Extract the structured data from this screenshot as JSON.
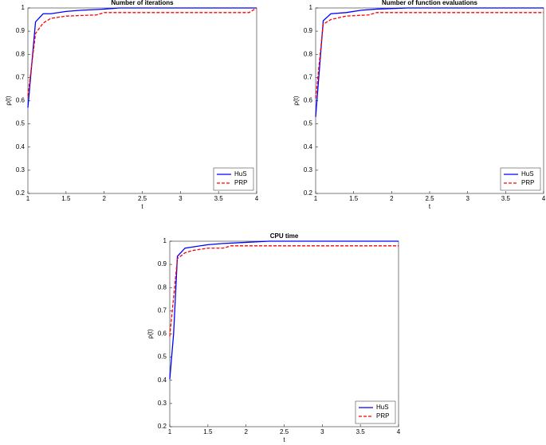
{
  "chart_data": [
    {
      "type": "line",
      "title": "Number of iterations",
      "xlabel": "t",
      "ylabel": "ρ(t)",
      "xlim": [
        1,
        4
      ],
      "ylim": [
        0.2,
        1
      ],
      "xticks": [
        1,
        1.5,
        2,
        2.5,
        3,
        3.5,
        4
      ],
      "yticks": [
        0.2,
        0.3,
        0.4,
        0.5,
        0.6,
        0.7,
        0.8,
        0.9,
        1
      ],
      "legend": "lower right",
      "series": [
        {
          "name": "HuS",
          "color": "#0000ff",
          "linestyle": "solid",
          "x": [
            1,
            1.1,
            1.2,
            1.3,
            1.5,
            1.7,
            2,
            2.2,
            4
          ],
          "values": [
            0.57,
            0.94,
            0.975,
            0.975,
            0.985,
            0.99,
            0.995,
            1,
            1
          ]
        },
        {
          "name": "PRP",
          "color": "#ff0000",
          "linestyle": "dashed",
          "x": [
            1,
            1.1,
            1.2,
            1.3,
            1.5,
            1.9,
            2,
            3.9,
            4
          ],
          "values": [
            0.62,
            0.89,
            0.935,
            0.955,
            0.965,
            0.97,
            0.98,
            0.98,
            1
          ]
        }
      ]
    },
    {
      "type": "line",
      "title": "Number of function evaluations",
      "xlabel": "t",
      "ylabel": "ρ(t)",
      "xlim": [
        1,
        4
      ],
      "ylim": [
        0.2,
        1
      ],
      "xticks": [
        1,
        1.5,
        2,
        2.5,
        3,
        3.5,
        4
      ],
      "yticks": [
        0.2,
        0.3,
        0.4,
        0.5,
        0.6,
        0.7,
        0.8,
        0.9,
        1
      ],
      "legend": "lower right",
      "series": [
        {
          "name": "HuS",
          "color": "#0000ff",
          "linestyle": "solid",
          "x": [
            1,
            1.1,
            1.2,
            1.4,
            1.6,
            1.8,
            2.2,
            4
          ],
          "values": [
            0.53,
            0.945,
            0.975,
            0.98,
            0.99,
            0.995,
            1,
            1
          ]
        },
        {
          "name": "PRP",
          "color": "#ff0000",
          "linestyle": "dashed",
          "x": [
            1,
            1.1,
            1.2,
            1.4,
            1.7,
            1.8,
            4
          ],
          "values": [
            0.61,
            0.93,
            0.95,
            0.965,
            0.97,
            0.98,
            0.98
          ]
        }
      ]
    },
    {
      "type": "line",
      "title": "CPU time",
      "xlabel": "t",
      "ylabel": "ρ(t)",
      "xlim": [
        1,
        4
      ],
      "ylim": [
        0.2,
        1
      ],
      "xticks": [
        1,
        1.5,
        2,
        2.5,
        3,
        3.5,
        4
      ],
      "yticks": [
        0.2,
        0.3,
        0.4,
        0.5,
        0.6,
        0.7,
        0.8,
        0.9,
        1
      ],
      "legend": "lower right",
      "series": [
        {
          "name": "HuS",
          "color": "#0000ff",
          "linestyle": "solid",
          "x": [
            1,
            1.05,
            1.1,
            1.2,
            1.3,
            1.5,
            1.7,
            2,
            2.3,
            4
          ],
          "values": [
            0.405,
            0.6,
            0.935,
            0.97,
            0.975,
            0.985,
            0.99,
            0.995,
            1,
            1
          ]
        },
        {
          "name": "PRP",
          "color": "#ff0000",
          "linestyle": "dashed",
          "x": [
            1,
            1.1,
            1.2,
            1.3,
            1.5,
            1.7,
            1.8,
            4
          ],
          "values": [
            0.59,
            0.925,
            0.95,
            0.96,
            0.97,
            0.97,
            0.98,
            0.98
          ]
        }
      ]
    }
  ]
}
